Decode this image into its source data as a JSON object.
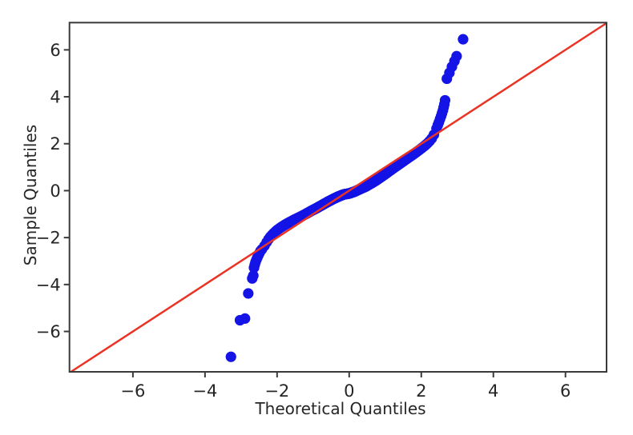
{
  "figure": {
    "background": "#ffffff",
    "text_color": "#262626",
    "axis_color": "#3a3a3a"
  },
  "chart_data": {
    "type": "scatter",
    "subtype": "qq_plot",
    "title": "",
    "xlabel": "Theoretical Quantiles",
    "ylabel": "Sample Quantiles",
    "xlim": [
      -7.76,
      7.14
    ],
    "ylim": [
      -7.72,
      7.16
    ],
    "xticks": [
      -6,
      -4,
      -2,
      0,
      2,
      4,
      6
    ],
    "yticks": [
      -6,
      -4,
      -2,
      0,
      2,
      4,
      6
    ],
    "grid": false,
    "legend": null,
    "marker_color": "#1414e6",
    "reference_line": {
      "equation": "y = x",
      "color": "#ea3323",
      "x_start": -7.72,
      "x_end": 7.14
    },
    "scatter": {
      "band": {
        "n": 600,
        "plotting_position": "(i - 0.375) / (n + 0.25)",
        "x_min": -2.44,
        "x_max": 2.44,
        "curve_points": [
          [
            -2.46,
            -2.57
          ],
          [
            -2.4,
            -2.46
          ],
          [
            -2.34,
            -2.33
          ],
          [
            -2.26,
            -2.12
          ],
          [
            -2.18,
            -1.95
          ],
          [
            -2.1,
            -1.82
          ],
          [
            -2.0,
            -1.68
          ],
          [
            -1.9,
            -1.57
          ],
          [
            -1.78,
            -1.45
          ],
          [
            -1.65,
            -1.34
          ],
          [
            -1.5,
            -1.22
          ],
          [
            -1.35,
            -1.11
          ],
          [
            -1.2,
            -0.99
          ],
          [
            -1.05,
            -0.86
          ],
          [
            -0.9,
            -0.74
          ],
          [
            -0.75,
            -0.61
          ],
          [
            -0.6,
            -0.48
          ],
          [
            -0.45,
            -0.36
          ],
          [
            -0.3,
            -0.25
          ],
          [
            -0.15,
            -0.16
          ],
          [
            0.0,
            -0.12
          ],
          [
            0.15,
            -0.04
          ],
          [
            0.3,
            0.07
          ],
          [
            0.45,
            0.17
          ],
          [
            0.6,
            0.3
          ],
          [
            0.75,
            0.44
          ],
          [
            0.9,
            0.6
          ],
          [
            1.05,
            0.76
          ],
          [
            1.2,
            0.93
          ],
          [
            1.35,
            1.09
          ],
          [
            1.5,
            1.25
          ],
          [
            1.65,
            1.41
          ],
          [
            1.8,
            1.57
          ],
          [
            1.95,
            1.74
          ],
          [
            2.1,
            1.92
          ],
          [
            2.2,
            2.06
          ],
          [
            2.28,
            2.2
          ],
          [
            2.34,
            2.35
          ],
          [
            2.4,
            2.55
          ],
          [
            2.46,
            2.8
          ]
        ]
      },
      "discrete_points": [
        [
          -3.28,
          -7.08
        ],
        [
          -3.03,
          -5.52
        ],
        [
          -2.89,
          -5.45
        ],
        [
          -2.8,
          -4.38
        ],
        [
          -2.69,
          -3.74
        ],
        [
          -2.66,
          -3.62
        ],
        [
          -2.64,
          -3.28
        ],
        [
          -2.62,
          -3.16
        ],
        [
          -2.6,
          -3.05
        ],
        [
          -2.575,
          -2.95
        ],
        [
          -2.55,
          -2.86
        ],
        [
          -2.52,
          -2.76
        ],
        [
          -2.49,
          -2.66
        ],
        [
          -2.46,
          -2.57
        ],
        [
          2.46,
          2.8
        ],
        [
          2.49,
          2.92
        ],
        [
          2.52,
          3.05
        ],
        [
          2.55,
          3.18
        ],
        [
          2.575,
          3.3
        ],
        [
          2.6,
          3.42
        ],
        [
          2.62,
          3.55
        ],
        [
          2.64,
          3.68
        ],
        [
          2.66,
          3.85
        ],
        [
          2.71,
          4.77
        ],
        [
          2.78,
          5.02
        ],
        [
          2.85,
          5.28
        ],
        [
          2.92,
          5.52
        ],
        [
          2.98,
          5.73
        ],
        [
          3.16,
          6.45
        ]
      ]
    }
  }
}
